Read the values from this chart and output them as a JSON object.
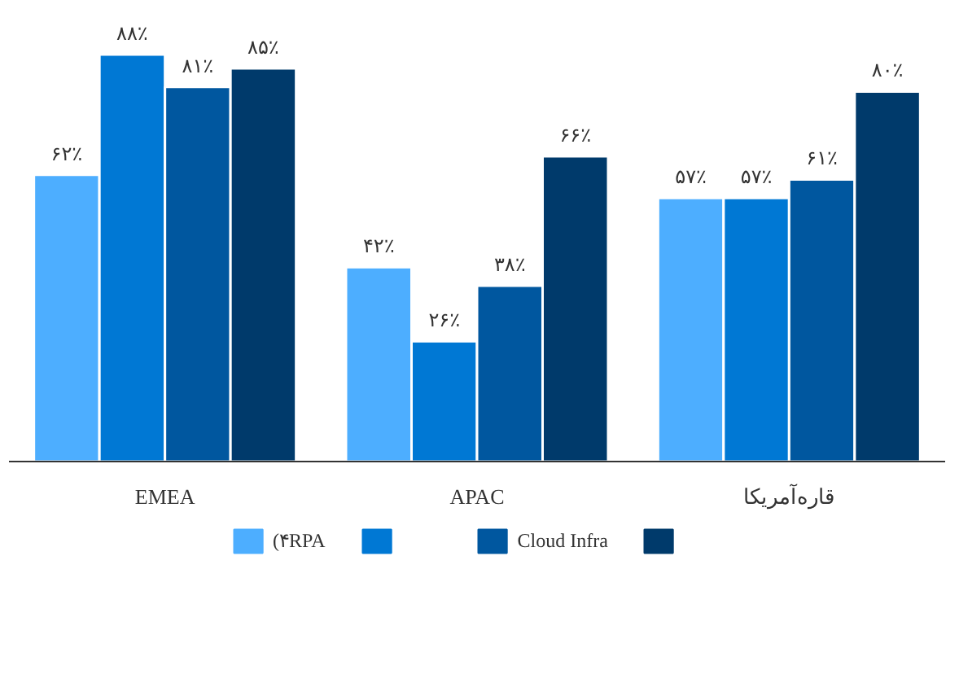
{
  "chart_data": {
    "type": "bar",
    "categories": [
      "EMEA",
      "APAC",
      "قاره‌آمریکا"
    ],
    "tick_labels": "x",
    "legend": "bottom",
    "grid": false,
    "series": [
      {
        "name": "(۴RPA",
        "color": "#4daeff",
        "values": [
          62,
          42,
          57
        ],
        "value_labels": [
          "۶۲٪",
          "۴۲٪",
          "۵۷٪"
        ]
      },
      {
        "color": "#0078d4",
        "values": [
          88,
          26,
          57
        ],
        "value_labels": [
          "۸۸٪",
          "۲۶٪",
          "۵۷٪"
        ]
      },
      {
        "name": "Cloud Infra",
        "color": "#00579f",
        "values": [
          81,
          38,
          61
        ],
        "value_labels": [
          "۸۱٪",
          "۳۸٪",
          "۶۱٪"
        ]
      },
      {
        "color": "#003a6b",
        "values": [
          85,
          66,
          80
        ],
        "value_labels": [
          "۸۵٪",
          "۶۶٪",
          "۸۰٪"
        ]
      }
    ]
  }
}
